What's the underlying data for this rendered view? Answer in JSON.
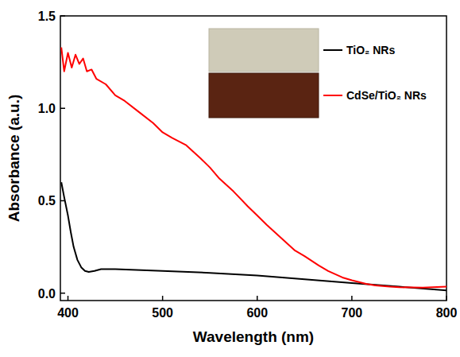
{
  "chart_data": {
    "type": "line",
    "x_label": "Wavelength (nm)",
    "y_label": "Absorbance (a.u.)",
    "xlim": [
      392,
      800
    ],
    "ylim": [
      -0.04,
      1.5
    ],
    "xticks": [
      400,
      500,
      600,
      700,
      800
    ],
    "yticks": [
      {
        "value": 0,
        "label": "0.0"
      },
      0.5,
      {
        "value": 1,
        "label": "1.0"
      },
      1.5
    ],
    "legend": "top-right",
    "grid": false,
    "series": [
      {
        "name": "TiO₂ NRs",
        "color": "#000000",
        "x": [
          393,
          396,
          400,
          403,
          406,
          410,
          414,
          418,
          422,
          428,
          435,
          450,
          500,
          550,
          600,
          650,
          700,
          750,
          800
        ],
        "values": [
          0.6,
          0.52,
          0.42,
          0.33,
          0.25,
          0.18,
          0.14,
          0.12,
          0.115,
          0.12,
          0.13,
          0.13,
          0.12,
          0.11,
          0.095,
          0.075,
          0.055,
          0.035,
          0.015
        ]
      },
      {
        "name": "CdSe/TiO₂ NRs",
        "color": "#ff0000",
        "x": [
          393,
          396,
          400,
          404,
          408,
          412,
          416,
          420,
          425,
          430,
          440,
          450,
          460,
          475,
          490,
          500,
          510,
          525,
          540,
          550,
          560,
          575,
          590,
          600,
          610,
          625,
          640,
          650,
          665,
          675,
          690,
          700,
          715,
          725,
          740,
          750,
          775,
          800
        ],
        "values": [
          1.33,
          1.2,
          1.3,
          1.22,
          1.29,
          1.24,
          1.27,
          1.2,
          1.21,
          1.16,
          1.13,
          1.07,
          1.04,
          0.98,
          0.92,
          0.87,
          0.84,
          0.8,
          0.73,
          0.68,
          0.62,
          0.55,
          0.47,
          0.42,
          0.37,
          0.3,
          0.23,
          0.2,
          0.15,
          0.12,
          0.085,
          0.07,
          0.05,
          0.042,
          0.035,
          0.032,
          0.03,
          0.035
        ]
      }
    ]
  }
}
